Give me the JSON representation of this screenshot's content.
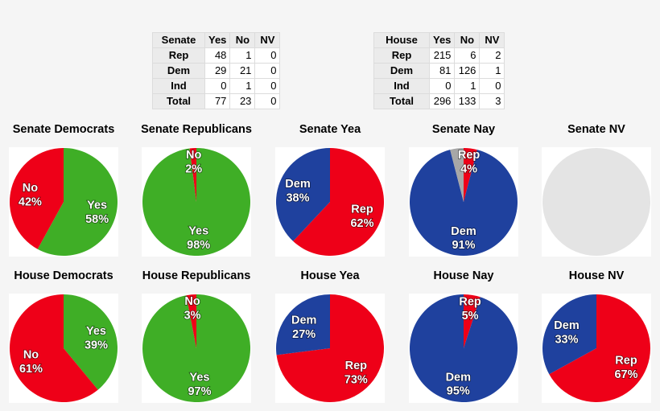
{
  "colors": {
    "yes": "#3fae26",
    "no": "#ee0018",
    "rep": "#ee0018",
    "dem": "#1f419e",
    "nv": "#a7a7a7",
    "empty": "#e4e4e4"
  },
  "senate_table": {
    "corner": "Senate",
    "columns": [
      "Yes",
      "No",
      "NV"
    ],
    "rows": [
      {
        "label": "Rep",
        "values": [
          "48",
          "1",
          "0"
        ]
      },
      {
        "label": "Dem",
        "values": [
          "29",
          "21",
          "0"
        ]
      },
      {
        "label": "Ind",
        "values": [
          "0",
          "1",
          "0"
        ]
      },
      {
        "label": "Total",
        "values": [
          "77",
          "23",
          "0"
        ]
      }
    ]
  },
  "house_table": {
    "corner": "House",
    "columns": [
      "Yes",
      "No",
      "NV"
    ],
    "rows": [
      {
        "label": "Rep",
        "values": [
          "215",
          "6",
          "2"
        ]
      },
      {
        "label": "Dem",
        "values": [
          "81",
          "126",
          "1"
        ]
      },
      {
        "label": "Ind",
        "values": [
          "0",
          "1",
          "0"
        ]
      },
      {
        "label": "Total",
        "values": [
          "296",
          "133",
          "3"
        ]
      }
    ]
  },
  "chart_data": [
    {
      "type": "pie",
      "title": "Senate Democrats",
      "slices": [
        {
          "label": "Yes",
          "value": 58,
          "color": "#3fae26",
          "text": "Yes",
          "pct": "58%"
        },
        {
          "label": "No",
          "value": 42,
          "color": "#ee0018",
          "text": "No",
          "pct": "42%"
        }
      ]
    },
    {
      "type": "pie",
      "title": "Senate Republicans",
      "slices": [
        {
          "label": "Yes",
          "value": 98,
          "color": "#3fae26",
          "text": "Yes",
          "pct": "98%"
        },
        {
          "label": "No",
          "value": 2,
          "color": "#ee0018",
          "text": "No",
          "pct": "2%"
        }
      ]
    },
    {
      "type": "pie",
      "title": "Senate Yea",
      "slices": [
        {
          "label": "Rep",
          "value": 62,
          "color": "#ee0018",
          "text": "Rep",
          "pct": "62%"
        },
        {
          "label": "Dem",
          "value": 38,
          "color": "#1f419e",
          "text": "Dem",
          "pct": "38%"
        }
      ]
    },
    {
      "type": "pie",
      "title": "Senate Nay",
      "slices": [
        {
          "label": "Rep",
          "value": 4,
          "color": "#ee0018",
          "text": "Rep",
          "pct": "4%"
        },
        {
          "label": "Dem",
          "value": 91,
          "color": "#1f419e",
          "text": "Dem",
          "pct": "91%"
        },
        {
          "label": "Ind",
          "value": 4,
          "color": "#a7a7a7"
        }
      ]
    },
    {
      "type": "pie",
      "title": "Senate NV",
      "slices": []
    },
    {
      "type": "pie",
      "title": "House Democrats",
      "slices": [
        {
          "label": "Yes",
          "value": 39,
          "color": "#3fae26",
          "text": "Yes",
          "pct": "39%"
        },
        {
          "label": "No",
          "value": 61,
          "color": "#ee0018",
          "text": "No",
          "pct": "61%"
        }
      ]
    },
    {
      "type": "pie",
      "title": "House Republicans",
      "slices": [
        {
          "label": "Yes",
          "value": 97,
          "color": "#3fae26",
          "text": "Yes",
          "pct": "97%"
        },
        {
          "label": "No",
          "value": 3,
          "color": "#ee0018",
          "text": "No",
          "pct": "3%"
        }
      ]
    },
    {
      "type": "pie",
      "title": "House Yea",
      "slices": [
        {
          "label": "Rep",
          "value": 73,
          "color": "#ee0018",
          "text": "Rep",
          "pct": "73%"
        },
        {
          "label": "Dem",
          "value": 27,
          "color": "#1f419e",
          "text": "Dem",
          "pct": "27%"
        }
      ]
    },
    {
      "type": "pie",
      "title": "House Nay",
      "slices": [
        {
          "label": "Rep",
          "value": 5,
          "color": "#ee0018",
          "text": "Rep",
          "pct": "5%"
        },
        {
          "label": "Dem",
          "value": 95,
          "color": "#1f419e",
          "text": "Dem",
          "pct": "95%"
        }
      ]
    },
    {
      "type": "pie",
      "title": "House NV",
      "slices": [
        {
          "label": "Rep",
          "value": 67,
          "color": "#ee0018",
          "text": "Rep",
          "pct": "67%"
        },
        {
          "label": "Dem",
          "value": 33,
          "color": "#1f419e",
          "text": "Dem",
          "pct": "33%"
        }
      ]
    }
  ]
}
